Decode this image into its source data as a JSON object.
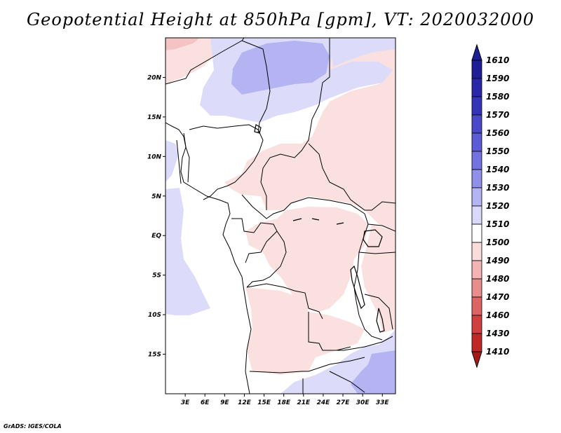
{
  "title": "Geopotential Height at 850hPa [gpm], VT: 2020032000",
  "credit": "GrADS: IGES/COLA",
  "map": {
    "lon_range": [
      0,
      35
    ],
    "lat_range": [
      -20,
      25
    ],
    "lat_labels": [
      "20N",
      "15N",
      "10N",
      "5N",
      "EQ",
      "5S",
      "10S",
      "15S"
    ],
    "lat_values": [
      20,
      15,
      10,
      5,
      0,
      -5,
      -10,
      -15
    ],
    "lon_labels": [
      "3E",
      "6E",
      "9E",
      "12E",
      "15E",
      "18E",
      "21E",
      "24E",
      "27E",
      "30E",
      "33E"
    ],
    "lon_values": [
      3,
      6,
      9,
      12,
      15,
      18,
      21,
      24,
      27,
      30,
      33
    ]
  },
  "colorbar": {
    "labels": [
      "1610",
      "1590",
      "1580",
      "1570",
      "1560",
      "1550",
      "1540",
      "1530",
      "1520",
      "1510",
      "1500",
      "1490",
      "1480",
      "1470",
      "1460",
      "1430",
      "1410"
    ],
    "colors": [
      "#1e1e96",
      "#2828a8",
      "#3434b8",
      "#4848c8",
      "#5c5cd6",
      "#7272e0",
      "#9090ea",
      "#b4b4f2",
      "#d8d8fa",
      "#ffffff",
      "#fbdcdc",
      "#f4b4b4",
      "#e88c8c",
      "#dc6464",
      "#d04040",
      "#c02828",
      "#a81818"
    ]
  }
}
